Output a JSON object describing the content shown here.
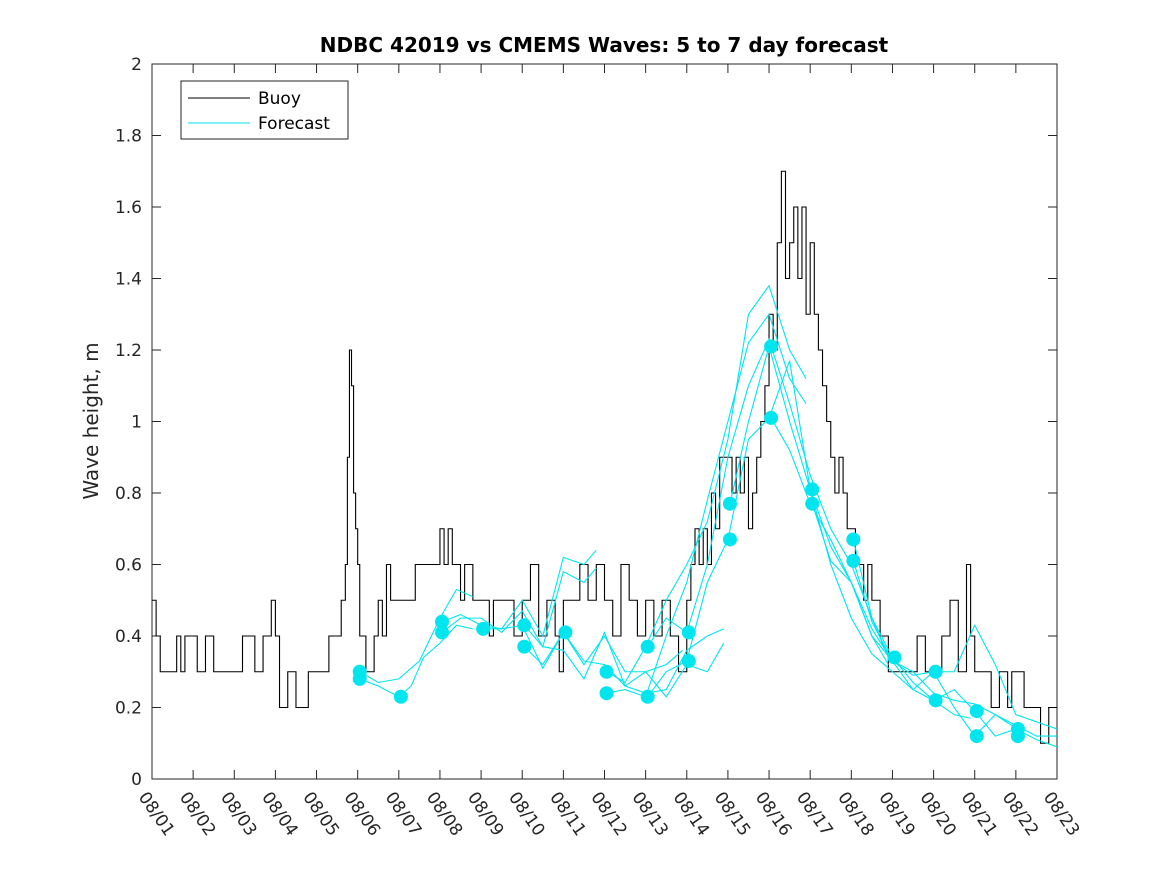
{
  "chart_data": {
    "type": "line",
    "title": "NDBC 42019 vs CMEMS Waves: 5 to 7 day forecast",
    "xlabel": "",
    "ylabel": "Wave height, m",
    "ylim": [
      0,
      2
    ],
    "xlim": [
      0,
      22
    ],
    "yticks": [
      0,
      0.2,
      0.4,
      0.6,
      0.8,
      1,
      1.2,
      1.4,
      1.6,
      1.8,
      2
    ],
    "ytick_labels": [
      "0",
      "0.2",
      "0.4",
      "0.6",
      "0.8",
      "1",
      "1.2",
      "1.4",
      "1.6",
      "1.8",
      "2"
    ],
    "x_tick_labels": [
      "08/01",
      "08/02",
      "08/03",
      "08/04",
      "08/05",
      "08/06",
      "08/07",
      "08/08",
      "08/09",
      "08/10",
      "08/11",
      "08/12",
      "08/13",
      "08/14",
      "08/15",
      "08/16",
      "08/17",
      "08/18",
      "08/19",
      "08/20",
      "08/21",
      "08/22",
      "08/23"
    ],
    "legend": {
      "position": "top-left",
      "entries": [
        {
          "label": "Buoy",
          "color": "#000000"
        },
        {
          "label": "Forecast",
          "color": "#00e5ee"
        }
      ]
    },
    "colors": {
      "buoy": "#000000",
      "forecast": "#00e5ee"
    },
    "series": [
      {
        "name": "Buoy",
        "x": [
          0,
          0.1,
          0.2,
          0.6,
          0.7,
          0.8,
          1.0,
          1.1,
          1.3,
          1.5,
          1.8,
          2.0,
          2.2,
          2.5,
          2.7,
          2.9,
          3.0,
          3.1,
          3.3,
          3.5,
          3.8,
          4.0,
          4.1,
          4.3,
          4.4,
          4.5,
          4.6,
          4.7,
          4.75,
          4.8,
          4.85,
          4.9,
          4.95,
          5.0,
          5.05,
          5.1,
          5.2,
          5.4,
          5.5,
          5.6,
          5.7,
          5.8,
          6.0,
          6.2,
          6.4,
          6.6,
          6.8,
          7.0,
          7.1,
          7.2,
          7.3,
          7.4,
          7.5,
          7.6,
          7.8,
          8.0,
          8.2,
          8.3,
          8.4,
          8.6,
          8.8,
          9.0,
          9.2,
          9.4,
          9.6,
          9.8,
          9.9,
          10.0,
          10.2,
          10.4,
          10.6,
          10.8,
          11.0,
          11.2,
          11.4,
          11.6,
          11.8,
          12.0,
          12.2,
          12.4,
          12.6,
          12.8,
          13.0,
          13.1,
          13.2,
          13.3,
          13.4,
          13.5,
          13.6,
          13.7,
          13.8,
          14.0,
          14.1,
          14.2,
          14.3,
          14.4,
          14.5,
          14.6,
          14.7,
          14.8,
          14.9,
          15.0,
          15.1,
          15.2,
          15.3,
          15.4,
          15.5,
          15.6,
          15.7,
          15.8,
          15.9,
          16.0,
          16.1,
          16.2,
          16.3,
          16.4,
          16.5,
          16.6,
          16.7,
          16.8,
          16.9,
          17.0,
          17.1,
          17.2,
          17.3,
          17.4,
          17.5,
          17.6,
          17.7,
          17.8,
          17.9,
          18.0,
          18.1,
          18.2,
          18.4,
          18.6,
          18.8,
          19.0,
          19.2,
          19.4,
          19.6,
          19.8,
          19.9,
          20.0,
          20.2,
          20.4,
          20.6,
          20.8,
          20.9,
          21.0,
          21.2,
          21.4,
          21.6,
          21.8,
          21.9,
          22.0
        ],
        "y": [
          0.5,
          0.4,
          0.3,
          0.4,
          0.3,
          0.4,
          0.4,
          0.3,
          0.4,
          0.3,
          0.3,
          0.3,
          0.4,
          0.3,
          0.4,
          0.5,
          0.4,
          0.2,
          0.3,
          0.2,
          0.3,
          0.3,
          0.3,
          0.4,
          0.4,
          0.4,
          0.5,
          0.6,
          0.9,
          1.2,
          1.1,
          0.8,
          0.7,
          0.6,
          0.4,
          0.4,
          0.3,
          0.4,
          0.5,
          0.4,
          0.6,
          0.5,
          0.5,
          0.5,
          0.6,
          0.6,
          0.6,
          0.7,
          0.6,
          0.7,
          0.6,
          0.6,
          0.5,
          0.6,
          0.5,
          0.5,
          0.4,
          0.5,
          0.5,
          0.5,
          0.4,
          0.5,
          0.6,
          0.4,
          0.5,
          0.4,
          0.3,
          0.5,
          0.5,
          0.6,
          0.5,
          0.6,
          0.5,
          0.4,
          0.6,
          0.5,
          0.4,
          0.5,
          0.4,
          0.5,
          0.4,
          0.3,
          0.5,
          0.6,
          0.7,
          0.6,
          0.7,
          0.6,
          0.8,
          0.7,
          0.9,
          0.9,
          0.8,
          0.9,
          0.8,
          0.9,
          0.7,
          0.8,
          0.9,
          1.0,
          1.1,
          1.3,
          1.2,
          1.5,
          1.7,
          1.4,
          1.5,
          1.6,
          1.4,
          1.6,
          1.3,
          1.5,
          1.3,
          1.2,
          1.1,
          1.0,
          0.9,
          0.8,
          0.9,
          0.8,
          0.7,
          0.7,
          0.6,
          0.6,
          0.5,
          0.6,
          0.5,
          0.5,
          0.4,
          0.4,
          0.3,
          0.3,
          0.3,
          0.3,
          0.3,
          0.4,
          0.3,
          0.3,
          0.4,
          0.5,
          0.3,
          0.6,
          0.4,
          0.3,
          0.3,
          0.2,
          0.3,
          0.2,
          0.3,
          0.3,
          0.2,
          0.2,
          0.1,
          0.2,
          0.2,
          0.2
        ]
      },
      {
        "name": "Forecast",
        "segments": [
          {
            "x": [
              5.05,
              5.5,
              6.0,
              6.5,
              7.0,
              7.4,
              7.8
            ],
            "y": [
              0.3,
              0.27,
              0.28,
              0.33,
              0.45,
              0.53,
              0.51
            ]
          },
          {
            "x": [
              5.05,
              5.5,
              6.0,
              6.3,
              6.6,
              7.0,
              7.4,
              7.8
            ],
            "y": [
              0.28,
              0.26,
              0.23,
              0.26,
              0.34,
              0.38,
              0.43,
              0.42
            ]
          },
          {
            "x": [
              7.05,
              7.5,
              8.0,
              8.5,
              9.0,
              9.5,
              10.0,
              10.5,
              10.8
            ],
            "y": [
              0.44,
              0.46,
              0.43,
              0.42,
              0.5,
              0.4,
              0.62,
              0.6,
              0.64
            ]
          },
          {
            "x": [
              7.05,
              7.5,
              8.0,
              8.5,
              9.0,
              9.5,
              10.0,
              10.5,
              10.8
            ],
            "y": [
              0.41,
              0.45,
              0.45,
              0.41,
              0.47,
              0.37,
              0.58,
              0.55,
              0.59
            ]
          },
          {
            "x": [
              8.05,
              8.5,
              9.0,
              9.5,
              10.0,
              10.5,
              11.0,
              11.5,
              12.0,
              12.5,
              12.9
            ],
            "y": [
              0.42,
              0.42,
              0.43,
              0.31,
              0.41,
              0.32,
              0.4,
              0.3,
              0.3,
              0.32,
              0.36
            ]
          },
          {
            "x": [
              9.05,
              9.5,
              10.0,
              10.5,
              11.0,
              11.5,
              12.0,
              12.5,
              13.0,
              13.5,
              13.9
            ],
            "y": [
              0.43,
              0.37,
              0.36,
              0.28,
              0.41,
              0.26,
              0.24,
              0.25,
              0.36,
              0.4,
              0.42
            ]
          },
          {
            "x": [
              9.05,
              9.5,
              10.0,
              10.5,
              11.0,
              11.5,
              12.0,
              12.5,
              13.0,
              13.5,
              13.9
            ],
            "y": [
              0.37,
              0.32,
              0.41,
              0.33,
              0.32,
              0.26,
              0.3,
              0.23,
              0.32,
              0.3,
              0.38
            ]
          },
          {
            "x": [
              11.05,
              11.5,
              12.0,
              12.5,
              13.0,
              13.5,
              14.0,
              14.5,
              15.0,
              15.5,
              15.9
            ],
            "y": [
              0.3,
              0.27,
              0.37,
              0.5,
              0.6,
              0.72,
              0.95,
              1.3,
              1.38,
              1.2,
              1.12
            ]
          },
          {
            "x": [
              11.05,
              11.5,
              12.0,
              12.5,
              13.0,
              13.5,
              14.0,
              14.5,
              15.0,
              15.5,
              15.9
            ],
            "y": [
              0.24,
              0.25,
              0.23,
              0.4,
              0.55,
              0.78,
              1.0,
              1.22,
              1.3,
              1.12,
              1.05
            ]
          },
          {
            "x": [
              12.05,
              12.5,
              13.0,
              13.5,
              14.0,
              14.5,
              15.0,
              15.5,
              16.0,
              16.5,
              17.0,
              17.5,
              17.9
            ],
            "y": [
              0.37,
              0.45,
              0.41,
              0.6,
              0.9,
              1.1,
              1.23,
              1.05,
              0.85,
              0.7,
              0.6,
              0.45,
              0.34
            ]
          },
          {
            "x": [
              12.05,
              12.5,
              13.0,
              13.5,
              14.0,
              14.5,
              15.0,
              15.5,
              16.0,
              16.5,
              17.0,
              17.5,
              17.9
            ],
            "y": [
              0.23,
              0.3,
              0.33,
              0.55,
              0.67,
              0.95,
              1.01,
              1.17,
              0.81,
              0.65,
              0.55,
              0.4,
              0.32
            ]
          },
          {
            "x": [
              14.05,
              14.5,
              15.0,
              15.5,
              16.0,
              16.5,
              17.0,
              17.5,
              18.0,
              18.5,
              19.0,
              19.5,
              19.9
            ],
            "y": [
              0.77,
              1.0,
              1.21,
              1.0,
              0.81,
              0.6,
              0.45,
              0.35,
              0.3,
              0.25,
              0.22,
              0.18,
              0.17
            ]
          },
          {
            "x": [
              15.05,
              15.5,
              16.0,
              16.5,
              17.0,
              17.5,
              18.0,
              18.5,
              19.0,
              19.5,
              20.0,
              20.5,
              20.9
            ],
            "y": [
              1.01,
              0.92,
              0.77,
              0.67,
              0.55,
              0.42,
              0.33,
              0.3,
              0.24,
              0.22,
              0.21,
              0.18,
              0.15
            ]
          },
          {
            "x": [
              16.05,
              16.5,
              17.0,
              17.5,
              18.0,
              18.5,
              19.0,
              19.5,
              20.0,
              20.5,
              21.0,
              21.5,
              22.0
            ],
            "y": [
              0.77,
              0.61,
              0.55,
              0.4,
              0.33,
              0.29,
              0.3,
              0.3,
              0.43,
              0.32,
              0.18,
              0.16,
              0.14
            ]
          },
          {
            "x": [
              17.05,
              17.5,
              18.0,
              18.5,
              19.0,
              19.5,
              20.0,
              20.5,
              21.0,
              21.5,
              22.0
            ],
            "y": [
              0.67,
              0.45,
              0.34,
              0.27,
              0.22,
              0.25,
              0.19,
              0.12,
              0.14,
              0.11,
              0.09
            ]
          },
          {
            "x": [
              17.05,
              17.5,
              18.0,
              18.5,
              19.0,
              19.5,
              20.0,
              20.5,
              21.0,
              21.5,
              22.0
            ],
            "y": [
              0.61,
              0.44,
              0.33,
              0.25,
              0.3,
              0.2,
              0.12,
              0.18,
              0.15,
              0.12,
              0.12
            ]
          }
        ],
        "markers": {
          "x": [
            5.05,
            5.05,
            6.05,
            7.05,
            7.05,
            8.05,
            9.05,
            9.05,
            10.05,
            11.05,
            11.05,
            12.05,
            12.05,
            13.05,
            13.05,
            14.05,
            14.05,
            15.05,
            15.05,
            16.05,
            16.05,
            17.05,
            17.05,
            18.05,
            19.05,
            19.05,
            20.05,
            20.05,
            21.05,
            21.05
          ],
          "y": [
            0.3,
            0.28,
            0.23,
            0.44,
            0.41,
            0.42,
            0.43,
            0.37,
            0.41,
            0.3,
            0.24,
            0.37,
            0.23,
            0.41,
            0.33,
            0.77,
            0.67,
            1.21,
            1.01,
            0.81,
            0.77,
            0.67,
            0.61,
            0.34,
            0.3,
            0.22,
            0.19,
            0.12,
            0.14,
            0.12
          ]
        }
      }
    ]
  }
}
